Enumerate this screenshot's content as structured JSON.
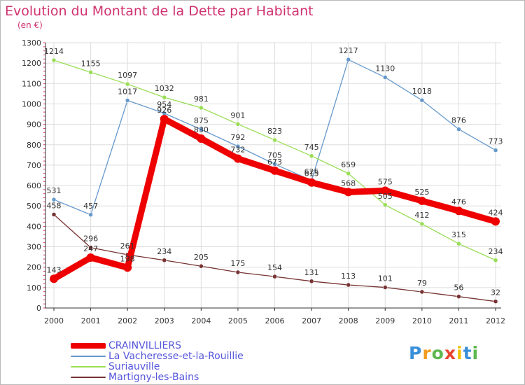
{
  "title": "Evolution du Montant de la Dette par Habitant",
  "subtitle": "(en €)",
  "logo_text": "Proxiti",
  "colors": {
    "title": "#d0326e",
    "legend_text": "#5555dd",
    "grid": "#dddddd",
    "axis": "#333333"
  },
  "chart_data": {
    "type": "line",
    "title": "Evolution du Montant de la Dette par Habitant",
    "subtitle": "(en €)",
    "x": [
      "2000",
      "2001",
      "2002",
      "2003",
      "2004",
      "2005",
      "2006",
      "2007",
      "2008",
      "2009",
      "2010",
      "2011",
      "2012"
    ],
    "ylim": [
      0,
      1300
    ],
    "yticks": [
      0,
      100,
      200,
      300,
      400,
      500,
      600,
      700,
      800,
      900,
      1000,
      1100,
      1200,
      1300
    ],
    "grid": true,
    "legend_position": "bottom-left",
    "series": [
      {
        "name": "CRAINVILLIERS",
        "color": "#ee0000",
        "width": "thick",
        "values": [
          143,
          247,
          198,
          926,
          830,
          732,
          673,
          615,
          568,
          575,
          525,
          476,
          424
        ]
      },
      {
        "name": "La Vacheresse-et-la-Rouillie",
        "color": "#6699cc",
        "width": "thin",
        "values": [
          531,
          457,
          1017,
          954,
          875,
          792,
          705,
          625,
          1217,
          1130,
          1018,
          876,
          773
        ]
      },
      {
        "name": "Suriauville",
        "color": "#99dd55",
        "width": "thin",
        "values": [
          1214,
          1155,
          1097,
          1032,
          981,
          901,
          823,
          745,
          659,
          505,
          412,
          315,
          234
        ]
      },
      {
        "name": "Martigny-les-Bains",
        "color": "#773333",
        "width": "thin",
        "values": [
          458,
          296,
          261,
          234,
          205,
          175,
          154,
          131,
          113,
          101,
          79,
          56,
          32
        ]
      }
    ]
  }
}
